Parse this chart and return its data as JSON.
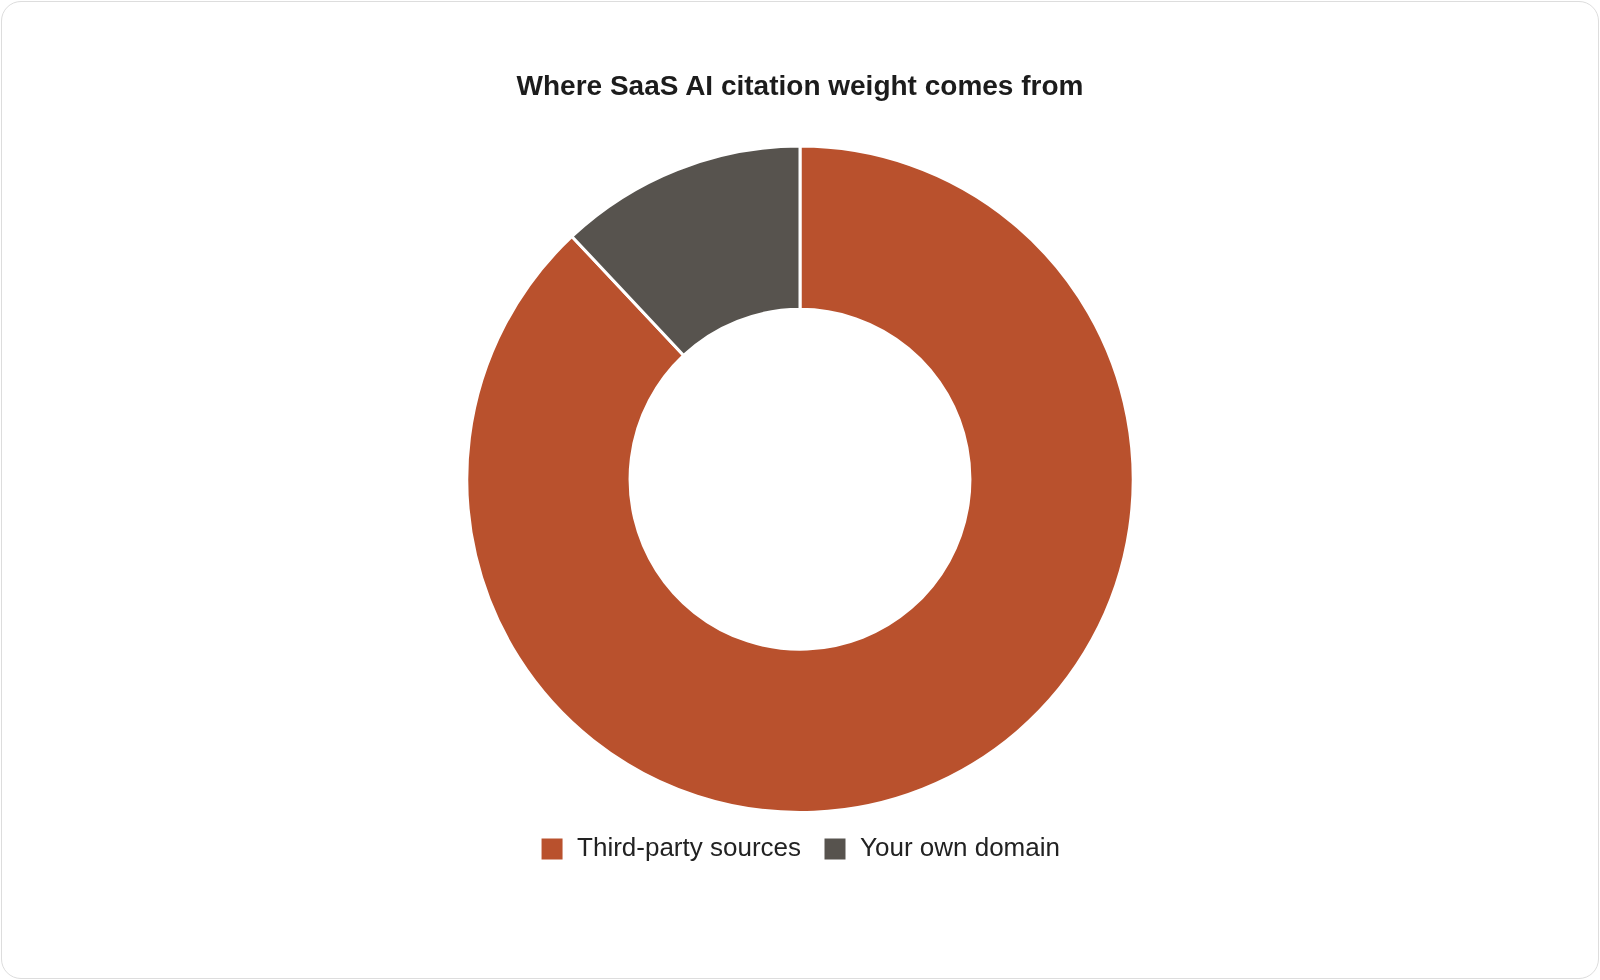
{
  "chart_data": {
    "type": "donut",
    "title": "Where SaaS AI citation weight comes from",
    "categories": [
      "Third-party sources",
      "Your own domain"
    ],
    "values": [
      88,
      12
    ],
    "colors": [
      "#b9512d",
      "#57534e"
    ],
    "legend": "bottom"
  }
}
